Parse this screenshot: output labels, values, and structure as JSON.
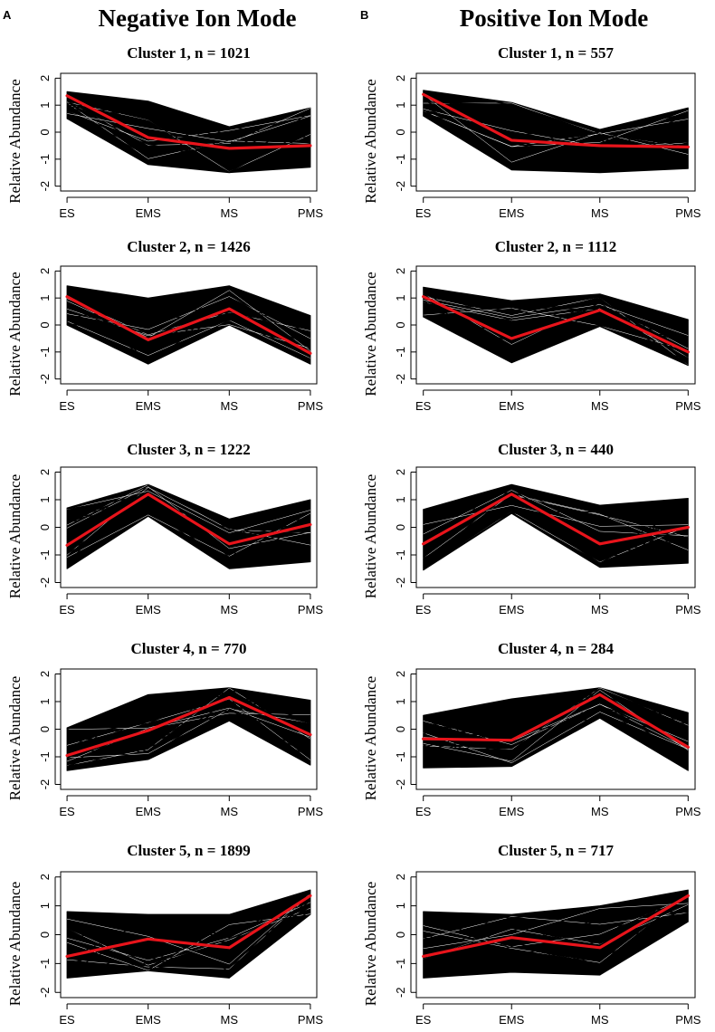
{
  "panels": [
    {
      "letter": "A",
      "title": "Negative Ion Mode"
    },
    {
      "letter": "B",
      "title": "Positive Ion Mode"
    }
  ],
  "chart_data": [
    {
      "type": "line",
      "panel": "A",
      "title": "Cluster 1, n = 1021",
      "categories": [
        "ES",
        "EMS",
        "MS",
        "PMS"
      ],
      "ylabel": "Relative Abundance",
      "ylim": [
        -2,
        2
      ],
      "yticks": [
        -2,
        -1,
        0,
        1,
        2
      ],
      "series": [
        {
          "name": "cluster mean",
          "color": "#e8141b",
          "values": [
            1.35,
            -0.2,
            -0.6,
            -0.5
          ]
        }
      ],
      "band": {
        "color": "#000000",
        "upper": [
          1.5,
          1.15,
          0.2,
          0.9
        ],
        "lower": [
          0.5,
          -1.2,
          -1.5,
          -1.3
        ]
      }
    },
    {
      "type": "line",
      "panel": "A",
      "title": "Cluster 2, n = 1426",
      "categories": [
        "ES",
        "EMS",
        "MS",
        "PMS"
      ],
      "ylabel": "Relative Abundance",
      "ylim": [
        -2,
        2
      ],
      "yticks": [
        -2,
        -1,
        0,
        1,
        2
      ],
      "series": [
        {
          "name": "cluster mean",
          "color": "#e8141b",
          "values": [
            1.05,
            -0.55,
            0.6,
            -1.05
          ]
        }
      ],
      "band": {
        "color": "#000000",
        "upper": [
          1.45,
          1.0,
          1.45,
          0.35
        ],
        "lower": [
          0.0,
          -1.45,
          0.0,
          -1.45
        ]
      }
    },
    {
      "type": "line",
      "panel": "A",
      "title": "Cluster 3, n = 1222",
      "categories": [
        "ES",
        "EMS",
        "MS",
        "PMS"
      ],
      "ylabel": "Relative Abundance",
      "ylim": [
        -2,
        2
      ],
      "yticks": [
        -2,
        -1,
        0,
        1,
        2
      ],
      "series": [
        {
          "name": "cluster mean",
          "color": "#e8141b",
          "values": [
            -0.65,
            1.2,
            -0.6,
            0.1
          ]
        }
      ],
      "band": {
        "color": "#000000",
        "upper": [
          0.7,
          1.55,
          0.3,
          1.0
        ],
        "lower": [
          -1.5,
          0.4,
          -1.5,
          -1.25
        ]
      }
    },
    {
      "type": "line",
      "panel": "A",
      "title": "Cluster 4, n = 770",
      "categories": [
        "ES",
        "EMS",
        "MS",
        "PMS"
      ],
      "ylabel": "Relative Abundance",
      "ylim": [
        -2,
        2
      ],
      "yticks": [
        -2,
        -1,
        0,
        1,
        2
      ],
      "series": [
        {
          "name": "cluster mean",
          "color": "#e8141b",
          "values": [
            -0.95,
            -0.05,
            1.15,
            -0.2
          ]
        }
      ],
      "band": {
        "color": "#000000",
        "upper": [
          0.05,
          1.25,
          1.5,
          1.05
        ],
        "lower": [
          -1.5,
          -1.1,
          0.3,
          -1.3
        ]
      }
    },
    {
      "type": "line",
      "panel": "A",
      "title": "Cluster 5, n = 1899",
      "categories": [
        "ES",
        "EMS",
        "MS",
        "PMS"
      ],
      "ylabel": "Relative Abundance",
      "ylim": [
        -2,
        2
      ],
      "yticks": [
        -2,
        -1,
        0,
        1,
        2
      ],
      "series": [
        {
          "name": "cluster mean",
          "color": "#e8141b",
          "values": [
            -0.75,
            -0.15,
            -0.45,
            1.35
          ]
        }
      ],
      "band": {
        "color": "#000000",
        "upper": [
          0.8,
          0.7,
          0.7,
          1.55
        ],
        "lower": [
          -1.5,
          -1.25,
          -1.5,
          0.7
        ]
      }
    },
    {
      "type": "line",
      "panel": "B",
      "title": "Cluster 1, n = 557",
      "categories": [
        "ES",
        "EMS",
        "MS",
        "PMS"
      ],
      "ylabel": "Relative Abundance",
      "ylim": [
        -2,
        2
      ],
      "yticks": [
        -2,
        -1,
        0,
        1,
        2
      ],
      "series": [
        {
          "name": "cluster mean",
          "color": "#e8141b",
          "values": [
            1.4,
            -0.3,
            -0.5,
            -0.55
          ]
        }
      ],
      "band": {
        "color": "#000000",
        "upper": [
          1.55,
          1.1,
          0.1,
          0.9
        ],
        "lower": [
          0.6,
          -1.4,
          -1.5,
          -1.35
        ]
      }
    },
    {
      "type": "line",
      "panel": "B",
      "title": "Cluster 2, n = 1112",
      "categories": [
        "ES",
        "EMS",
        "MS",
        "PMS"
      ],
      "ylabel": "Relative Abundance",
      "ylim": [
        -2,
        2
      ],
      "yticks": [
        -2,
        -1,
        0,
        1,
        2
      ],
      "series": [
        {
          "name": "cluster mean",
          "color": "#e8141b",
          "values": [
            1.05,
            -0.5,
            0.55,
            -1.0
          ]
        }
      ],
      "band": {
        "color": "#000000",
        "upper": [
          1.4,
          0.9,
          1.15,
          0.2
        ],
        "lower": [
          0.3,
          -1.4,
          -0.05,
          -1.5
        ]
      }
    },
    {
      "type": "line",
      "panel": "B",
      "title": "Cluster 3, n = 440",
      "categories": [
        "ES",
        "EMS",
        "MS",
        "PMS"
      ],
      "ylabel": "Relative Abundance",
      "ylim": [
        -2,
        2
      ],
      "yticks": [
        -2,
        -1,
        0,
        1,
        2
      ],
      "series": [
        {
          "name": "cluster mean",
          "color": "#e8141b",
          "values": [
            -0.6,
            1.2,
            -0.6,
            0.0
          ]
        }
      ],
      "band": {
        "color": "#000000",
        "upper": [
          0.65,
          1.55,
          0.8,
          1.05
        ],
        "lower": [
          -1.55,
          0.5,
          -1.45,
          -1.3
        ]
      }
    },
    {
      "type": "line",
      "panel": "B",
      "title": "Cluster 4, n = 284",
      "categories": [
        "ES",
        "EMS",
        "MS",
        "PMS"
      ],
      "ylabel": "Relative Abundance",
      "ylim": [
        -2,
        2
      ],
      "yticks": [
        -2,
        -1,
        0,
        1,
        2
      ],
      "series": [
        {
          "name": "cluster mean",
          "color": "#e8141b",
          "values": [
            -0.35,
            -0.4,
            1.25,
            -0.65
          ]
        }
      ],
      "band": {
        "color": "#000000",
        "upper": [
          0.5,
          1.1,
          1.5,
          0.6
        ],
        "lower": [
          -1.4,
          -1.35,
          0.4,
          -1.5
        ]
      }
    },
    {
      "type": "line",
      "panel": "B",
      "title": "Cluster 5, n = 717",
      "categories": [
        "ES",
        "EMS",
        "MS",
        "PMS"
      ],
      "ylabel": "Relative Abundance",
      "ylim": [
        -2,
        2
      ],
      "yticks": [
        -2,
        -1,
        0,
        1,
        2
      ],
      "series": [
        {
          "name": "cluster mean",
          "color": "#e8141b",
          "values": [
            -0.75,
            -0.1,
            -0.45,
            1.35
          ]
        }
      ],
      "band": {
        "color": "#000000",
        "upper": [
          0.8,
          0.7,
          1.0,
          1.55
        ],
        "lower": [
          -1.5,
          -1.3,
          -1.4,
          0.45
        ]
      }
    }
  ]
}
